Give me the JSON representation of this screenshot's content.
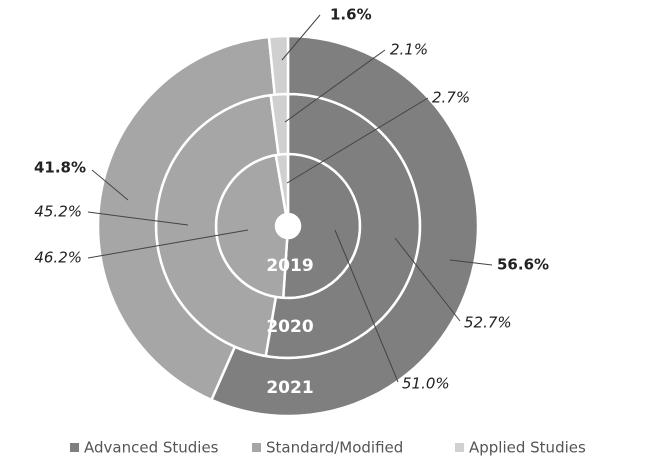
{
  "chart_data": {
    "type": "donut",
    "categories": [
      "2019",
      "2020",
      "2021"
    ],
    "series": [
      {
        "name": "Advanced Studies",
        "color": "#7f7f7f",
        "values": [
          51.0,
          52.7,
          56.6
        ],
        "value_labels": [
          "51.0%",
          "52.7%",
          "56.6%"
        ]
      },
      {
        "name": "Standard/Modified",
        "color": "#a6a6a6",
        "values": [
          46.2,
          45.2,
          41.8
        ],
        "value_labels": [
          "46.2%",
          "45.2%",
          "41.8%"
        ]
      },
      {
        "name": "Applied Studies",
        "color": "#d0d0d0",
        "values": [
          2.7,
          2.1,
          1.6
        ],
        "value_labels": [
          "2.7%",
          "2.1%",
          "1.6%"
        ]
      }
    ],
    "legend": "bottom"
  }
}
